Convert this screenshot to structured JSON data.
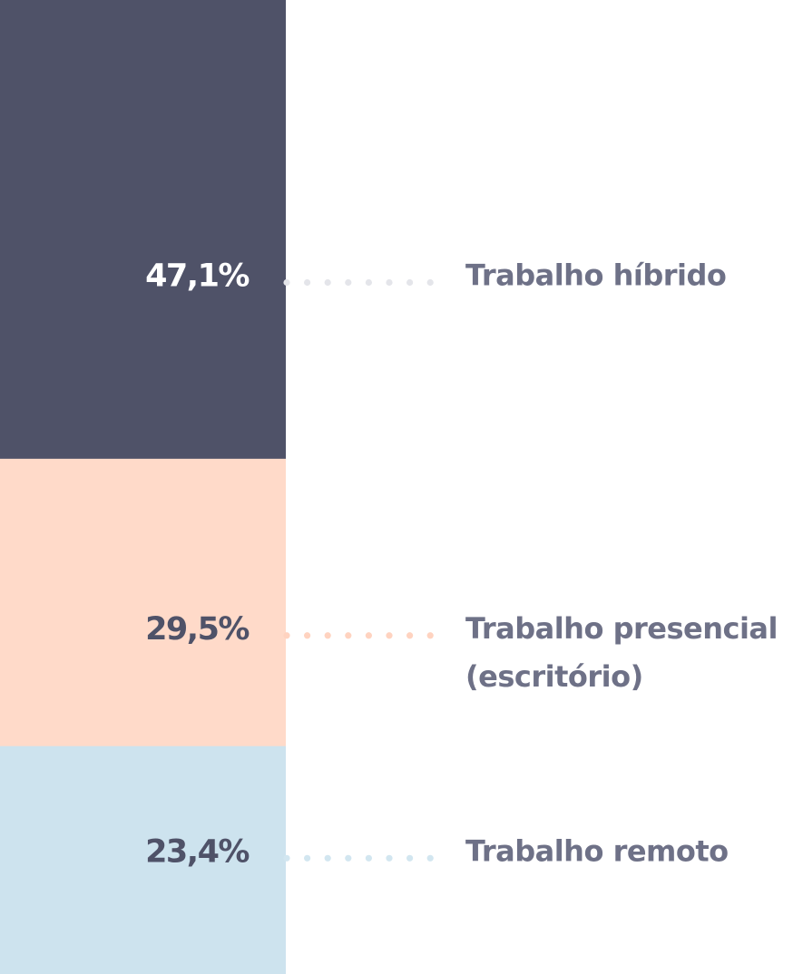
{
  "chart_data": {
    "type": "bar",
    "stacked": true,
    "orientation": "vertical",
    "unit": "%",
    "categories": [
      "Trabalho híbrido",
      "Trabalho presencial (escritório)",
      "Trabalho remoto"
    ],
    "label_lines": [
      [
        "Trabalho híbrido"
      ],
      [
        "Trabalho presencial",
        "(escritório)"
      ],
      [
        "Trabalho remoto"
      ]
    ],
    "values": [
      47.1,
      29.5,
      23.4
    ],
    "value_labels": [
      "47,1%",
      "29,5%",
      "23,4%"
    ],
    "colors": [
      "#4f5268",
      "#ffdac9",
      "#cde3ee"
    ],
    "value_label_colors": [
      "#ffffff",
      "#4f5268",
      "#4f5268"
    ],
    "connector_colors": [
      "#e4e5ea",
      "#ffd3c0",
      "#d2e6f0"
    ],
    "label_color": "#6e7187",
    "title": "",
    "xlabel": "",
    "ylabel": "",
    "legend": "none",
    "grid": false
  }
}
